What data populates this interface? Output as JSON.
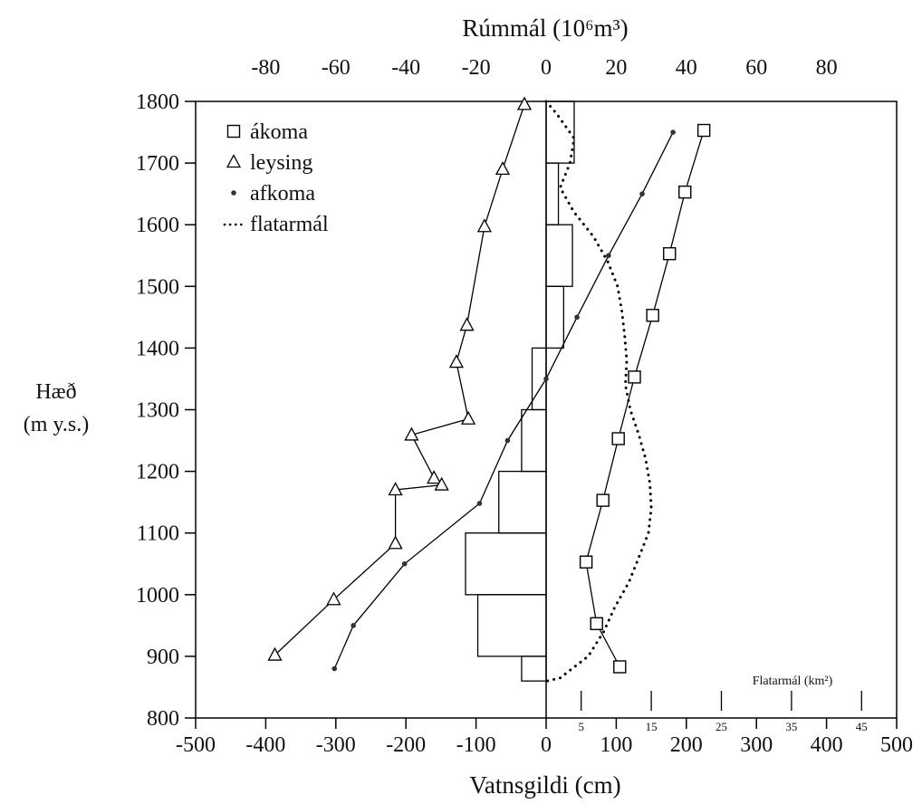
{
  "chart_data": {
    "type": "line",
    "title": "",
    "top_axis": {
      "label": "Rúmmál (10⁶m³)",
      "ticks": [
        -80,
        -60,
        -40,
        -20,
        0,
        20,
        40,
        60,
        80
      ],
      "range": [
        -100,
        100
      ]
    },
    "xlabel": "Vatnsgildi (cm)",
    "xlim": [
      -500,
      500
    ],
    "xticks": [
      -500,
      -400,
      -300,
      -200,
      -100,
      0,
      100,
      200,
      300,
      400,
      500
    ],
    "ylabel_lines": [
      "Hæð",
      "(m y.s.)"
    ],
    "ylim": [
      800,
      1800
    ],
    "yticks": [
      800,
      900,
      1000,
      1100,
      1200,
      1300,
      1400,
      1500,
      1600,
      1700,
      1800
    ],
    "inset_axis": {
      "label": "Flatarmál (km²)",
      "ticks": [
        5,
        15,
        25,
        35,
        45
      ],
      "cm_per_km2": 10
    },
    "legend": [
      {
        "key": "akoma",
        "marker": "square",
        "label": "ákoma"
      },
      {
        "key": "leysing",
        "marker": "triangle",
        "label": "leysing"
      },
      {
        "key": "afkoma",
        "marker": "dot",
        "label": "afkoma"
      },
      {
        "key": "flatarmal",
        "marker": "dotted",
        "label": "flatarmál"
      }
    ],
    "series": [
      {
        "key": "akoma",
        "marker": "square",
        "points": [
          [
            225,
            1753
          ],
          [
            198,
            1653
          ],
          [
            176,
            1553
          ],
          [
            152,
            1453
          ],
          [
            126,
            1353
          ],
          [
            103,
            1253
          ],
          [
            81,
            1153
          ],
          [
            57,
            1053
          ],
          [
            72,
            953
          ],
          [
            105,
            883
          ]
        ]
      },
      {
        "key": "afkoma",
        "marker": "dot",
        "points": [
          [
            181,
            1750
          ],
          [
            137,
            1650
          ],
          [
            89,
            1550
          ],
          [
            44,
            1450
          ],
          [
            0,
            1350
          ],
          [
            -55,
            1250
          ],
          [
            -95,
            1148
          ],
          [
            -202,
            1050
          ],
          [
            -275,
            950
          ],
          [
            -302,
            880
          ]
        ]
      },
      {
        "key": "leysing",
        "marker": "triangle",
        "points": [
          [
            -31,
            1795
          ],
          [
            -62,
            1690
          ],
          [
            -88,
            1597
          ],
          [
            -113,
            1437
          ],
          [
            -128,
            1377
          ],
          [
            -111,
            1285
          ],
          [
            -192,
            1259
          ],
          [
            -160,
            1189
          ],
          [
            -149,
            1178
          ],
          [
            -215,
            1170
          ],
          [
            -215,
            1083
          ],
          [
            -303,
            992
          ],
          [
            -387,
            902
          ]
        ]
      },
      {
        "key": "flatarmal",
        "marker": "dotted",
        "points": [
          [
            0,
            1800
          ],
          [
            15,
            1780
          ],
          [
            40,
            1740
          ],
          [
            34,
            1700
          ],
          [
            20,
            1660
          ],
          [
            40,
            1620
          ],
          [
            68,
            1580
          ],
          [
            88,
            1540
          ],
          [
            102,
            1500
          ],
          [
            108,
            1460
          ],
          [
            112,
            1420
          ],
          [
            115,
            1380
          ],
          [
            113,
            1340
          ],
          [
            120,
            1300
          ],
          [
            132,
            1260
          ],
          [
            142,
            1220
          ],
          [
            148,
            1180
          ],
          [
            150,
            1140
          ],
          [
            146,
            1100
          ],
          [
            132,
            1060
          ],
          [
            118,
            1020
          ],
          [
            98,
            980
          ],
          [
            82,
            940
          ],
          [
            60,
            900
          ],
          [
            20,
            865
          ],
          [
            2,
            860
          ]
        ]
      }
    ],
    "volume_bars": [
      {
        "y0": 1700,
        "y1": 1800,
        "value": 8
      },
      {
        "y0": 1600,
        "y1": 1700,
        "value": 3.5
      },
      {
        "y0": 1500,
        "y1": 1600,
        "value": 7.5
      },
      {
        "y0": 1400,
        "y1": 1500,
        "value": 5
      },
      {
        "y0": 1300,
        "y1": 1400,
        "value": -4
      },
      {
        "y0": 1200,
        "y1": 1300,
        "value": -7
      },
      {
        "y0": 1100,
        "y1": 1200,
        "value": -13.5
      },
      {
        "y0": 1000,
        "y1": 1100,
        "value": -23
      },
      {
        "y0": 900,
        "y1": 1000,
        "value": -19.5
      },
      {
        "y0": 860,
        "y1": 900,
        "value": -7
      }
    ]
  }
}
